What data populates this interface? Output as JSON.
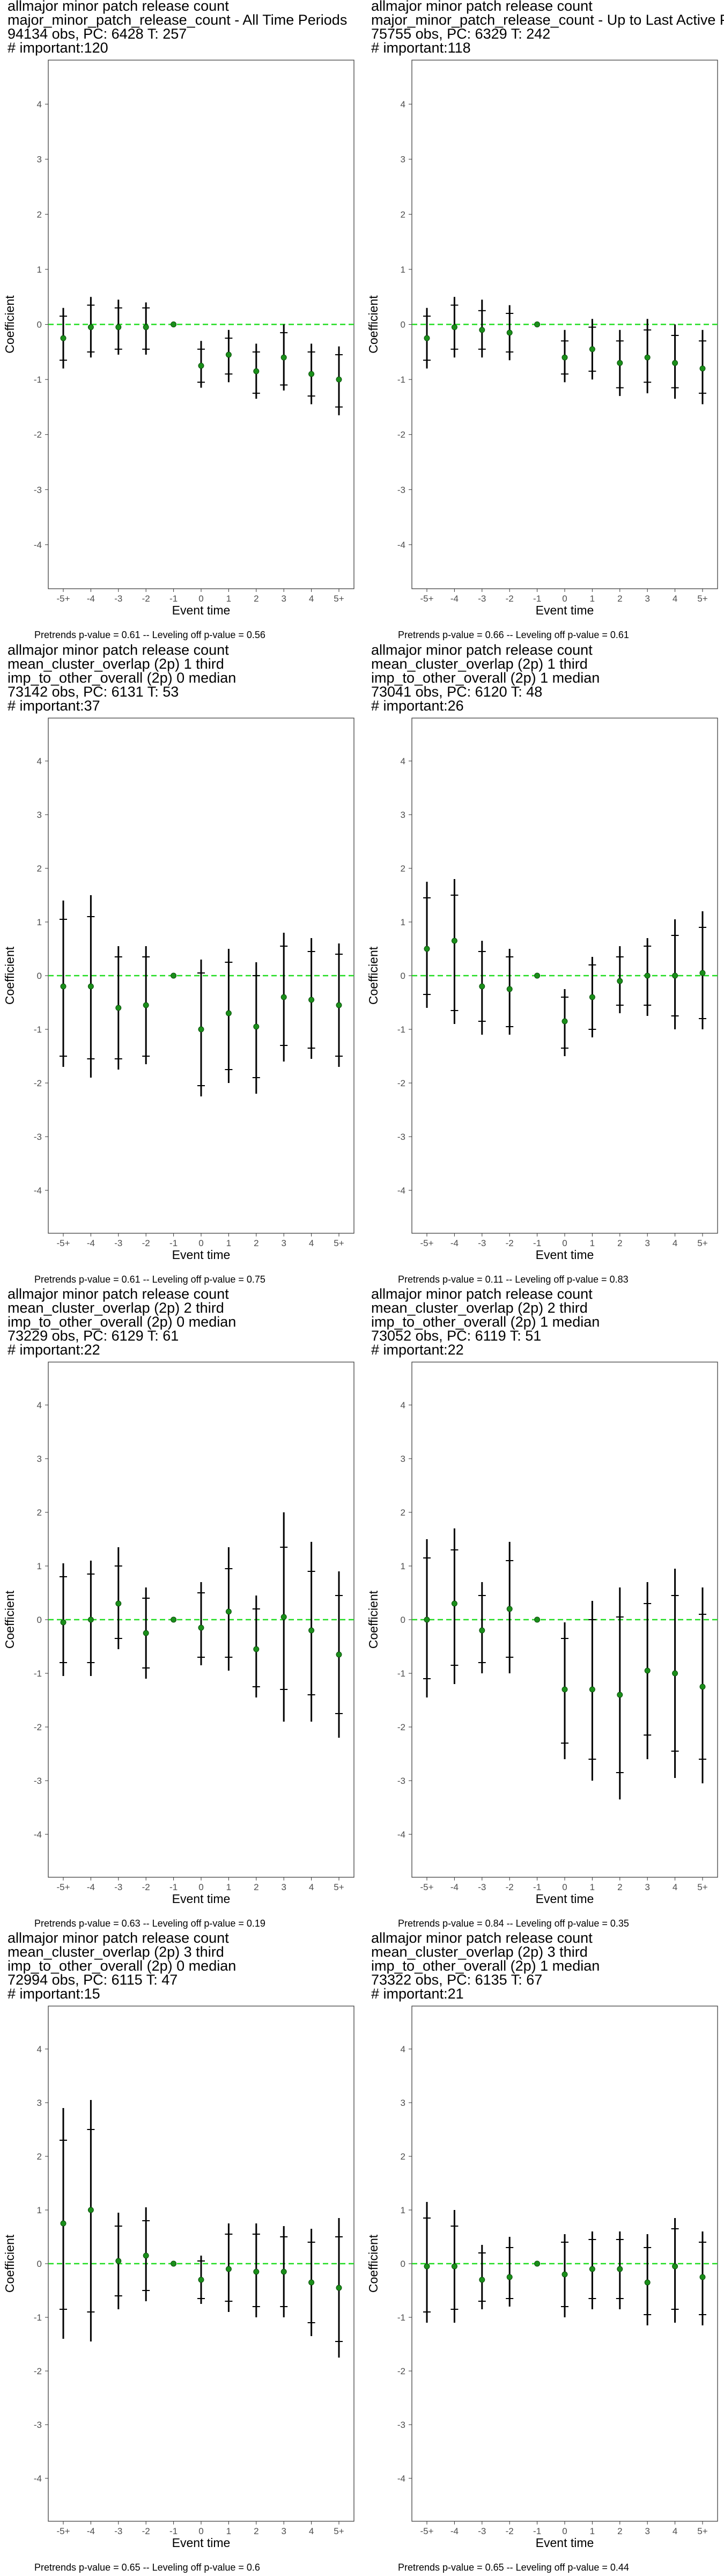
{
  "colors": {
    "zero_line": "#22dd22",
    "point": "#1a8f1a",
    "ci": "#000000",
    "panel_border": "#333333",
    "axis_tick_text": "#4d4d4d"
  },
  "chart_data": [
    {
      "type": "scatter",
      "title_lines": [
        " allmajor minor patch release count",
        "major_minor_patch_release_count - All Time Periods",
        "94134 obs, PC: 6428 T: 257",
        "# important:120"
      ],
      "xlabel": "Event time",
      "ylabel": "Coefficient",
      "categories": [
        "-5+",
        "-4",
        "-3",
        "-2",
        "-1",
        "0",
        "1",
        "2",
        "3",
        "4",
        "5+"
      ],
      "ylim": [
        -4.8,
        4.8
      ],
      "yticks": [
        -4,
        -3,
        -2,
        -1,
        0,
        1,
        2,
        3,
        4
      ],
      "estimates": [
        -0.25,
        -0.05,
        -0.05,
        -0.05,
        0,
        -0.75,
        -0.55,
        -0.85,
        -0.6,
        -0.9,
        -1.0
      ],
      "ci95": [
        [
          -0.8,
          0.3
        ],
        [
          -0.6,
          0.5
        ],
        [
          -0.55,
          0.45
        ],
        [
          -0.55,
          0.4
        ],
        null,
        [
          -1.15,
          -0.3
        ],
        [
          -1.05,
          -0.1
        ],
        [
          -1.35,
          -0.35
        ],
        [
          -1.2,
          0.0
        ],
        [
          -1.45,
          -0.35
        ],
        [
          -1.65,
          -0.4
        ]
      ],
      "ci_inner": [
        [
          -0.65,
          0.15
        ],
        [
          -0.5,
          0.35
        ],
        [
          -0.45,
          0.3
        ],
        [
          -0.45,
          0.3
        ],
        null,
        [
          -1.05,
          -0.45
        ],
        [
          -0.9,
          -0.25
        ],
        [
          -1.25,
          -0.5
        ],
        [
          -1.1,
          -0.15
        ],
        [
          -1.3,
          -0.5
        ],
        [
          -1.5,
          -0.55
        ]
      ],
      "caption": "Pretrends p-value = 0.61 -- Leveling off p-value = 0.56"
    },
    {
      "type": "scatter",
      "title_lines": [
        " allmajor minor patch release count",
        "major_minor_patch_release_count - Up to Last Active Period",
        "75755 obs, PC: 6329 T: 242",
        "# important:118"
      ],
      "xlabel": "Event time",
      "ylabel": "Coefficient",
      "categories": [
        "-5+",
        "-4",
        "-3",
        "-2",
        "-1",
        "0",
        "1",
        "2",
        "3",
        "4",
        "5+"
      ],
      "ylim": [
        -4.8,
        4.8
      ],
      "yticks": [
        -4,
        -3,
        -2,
        -1,
        0,
        1,
        2,
        3,
        4
      ],
      "estimates": [
        -0.25,
        -0.05,
        -0.1,
        -0.15,
        0,
        -0.6,
        -0.45,
        -0.7,
        -0.6,
        -0.7,
        -0.8
      ],
      "ci95": [
        [
          -0.8,
          0.3
        ],
        [
          -0.6,
          0.5
        ],
        [
          -0.6,
          0.45
        ],
        [
          -0.65,
          0.35
        ],
        null,
        [
          -1.05,
          -0.1
        ],
        [
          -1.0,
          0.1
        ],
        [
          -1.3,
          -0.1
        ],
        [
          -1.25,
          0.1
        ],
        [
          -1.35,
          0.0
        ],
        [
          -1.45,
          -0.1
        ]
      ],
      "ci_inner": [
        [
          -0.65,
          0.15
        ],
        [
          -0.45,
          0.35
        ],
        [
          -0.45,
          0.25
        ],
        [
          -0.5,
          0.2
        ],
        null,
        [
          -0.9,
          -0.3
        ],
        [
          -0.85,
          -0.05
        ],
        [
          -1.15,
          -0.3
        ],
        [
          -1.05,
          -0.1
        ],
        [
          -1.15,
          -0.2
        ],
        [
          -1.25,
          -0.3
        ]
      ],
      "caption": "Pretrends p-value = 0.66 -- Leveling off p-value = 0.61"
    },
    {
      "type": "scatter",
      "title_lines": [
        " allmajor minor patch release count",
        "mean_cluster_overlap (2p) 1 third",
        "imp_to_other_overall (2p) 0 median",
        "73142 obs, PC: 6131 T: 53",
        "# important:37"
      ],
      "xlabel": "Event time",
      "ylabel": "Coefficient",
      "categories": [
        "-5+",
        "-4",
        "-3",
        "-2",
        "-1",
        "0",
        "1",
        "2",
        "3",
        "4",
        "5+"
      ],
      "ylim": [
        -4.8,
        4.8
      ],
      "yticks": [
        -4,
        -3,
        -2,
        -1,
        0,
        1,
        2,
        3,
        4
      ],
      "estimates": [
        -0.2,
        -0.2,
        -0.6,
        -0.55,
        0,
        -1.0,
        -0.7,
        -0.95,
        -0.4,
        -0.45,
        -0.55
      ],
      "ci95": [
        [
          -1.7,
          1.4
        ],
        [
          -1.9,
          1.5
        ],
        [
          -1.75,
          0.55
        ],
        [
          -1.65,
          0.55
        ],
        null,
        [
          -2.25,
          0.3
        ],
        [
          -2.0,
          0.5
        ],
        [
          -2.2,
          0.25
        ],
        [
          -1.6,
          0.8
        ],
        [
          -1.55,
          0.7
        ],
        [
          -1.7,
          0.6
        ]
      ],
      "ci_inner": [
        [
          -1.5,
          1.05
        ],
        [
          -1.55,
          1.1
        ],
        [
          -1.55,
          0.35
        ],
        [
          -1.5,
          0.35
        ],
        null,
        [
          -2.05,
          0.05
        ],
        [
          -1.75,
          0.25
        ],
        [
          -1.9,
          0.0
        ],
        [
          -1.3,
          0.55
        ],
        [
          -1.35,
          0.45
        ],
        [
          -1.5,
          0.4
        ]
      ],
      "caption": "Pretrends p-value = 0.61 -- Leveling off p-value = 0.75"
    },
    {
      "type": "scatter",
      "title_lines": [
        " allmajor minor patch release count",
        "mean_cluster_overlap (2p) 1 third",
        "imp_to_other_overall (2p) 1 median",
        "73041 obs, PC: 6120 T: 48",
        "# important:26"
      ],
      "xlabel": "Event time",
      "ylabel": "Coefficient",
      "categories": [
        "-5+",
        "-4",
        "-3",
        "-2",
        "-1",
        "0",
        "1",
        "2",
        "3",
        "4",
        "5+"
      ],
      "ylim": [
        -4.8,
        4.8
      ],
      "yticks": [
        -4,
        -3,
        -2,
        -1,
        0,
        1,
        2,
        3,
        4
      ],
      "estimates": [
        0.5,
        0.65,
        -0.2,
        -0.25,
        0,
        -0.85,
        -0.4,
        -0.1,
        0.0,
        0.0,
        0.05
      ],
      "ci95": [
        [
          -0.6,
          1.75
        ],
        [
          -0.9,
          1.8
        ],
        [
          -1.1,
          0.65
        ],
        [
          -1.1,
          0.5
        ],
        null,
        [
          -1.5,
          -0.25
        ],
        [
          -1.15,
          0.35
        ],
        [
          -0.7,
          0.55
        ],
        [
          -0.75,
          0.7
        ],
        [
          -1.0,
          1.05
        ],
        [
          -1.0,
          1.2
        ]
      ],
      "ci_inner": [
        [
          -0.35,
          1.45
        ],
        [
          -0.65,
          1.5
        ],
        [
          -0.85,
          0.45
        ],
        [
          -0.95,
          0.35
        ],
        null,
        [
          -1.35,
          -0.4
        ],
        [
          -1.0,
          0.2
        ],
        [
          -0.55,
          0.35
        ],
        [
          -0.55,
          0.55
        ],
        [
          -0.75,
          0.75
        ],
        [
          -0.8,
          0.9
        ]
      ],
      "caption": "Pretrends p-value = 0.11 -- Leveling off p-value = 0.83"
    },
    {
      "type": "scatter",
      "title_lines": [
        " allmajor minor patch release count",
        "mean_cluster_overlap (2p) 2 third",
        "imp_to_other_overall (2p) 0 median",
        "73229 obs, PC: 6129 T: 61",
        "# important:22"
      ],
      "xlabel": "Event time",
      "ylabel": "Coefficient",
      "categories": [
        "-5+",
        "-4",
        "-3",
        "-2",
        "-1",
        "0",
        "1",
        "2",
        "3",
        "4",
        "5+"
      ],
      "ylim": [
        -4.8,
        4.8
      ],
      "yticks": [
        -4,
        -3,
        -2,
        -1,
        0,
        1,
        2,
        3,
        4
      ],
      "estimates": [
        -0.05,
        0.0,
        0.3,
        -0.25,
        0,
        -0.15,
        0.15,
        -0.55,
        0.05,
        -0.2,
        -0.65
      ],
      "ci95": [
        [
          -1.05,
          1.05
        ],
        [
          -1.05,
          1.1
        ],
        [
          -0.55,
          1.35
        ],
        [
          -1.1,
          0.6
        ],
        null,
        [
          -0.85,
          0.7
        ],
        [
          -0.95,
          1.35
        ],
        [
          -1.45,
          0.45
        ],
        [
          -1.9,
          2.0
        ],
        [
          -1.9,
          1.45
        ],
        [
          -2.2,
          0.9
        ]
      ],
      "ci_inner": [
        [
          -0.8,
          0.8
        ],
        [
          -0.8,
          0.85
        ],
        [
          -0.35,
          1.0
        ],
        [
          -0.9,
          0.4
        ],
        null,
        [
          -0.7,
          0.5
        ],
        [
          -0.7,
          0.95
        ],
        [
          -1.25,
          0.2
        ],
        [
          -1.3,
          1.35
        ],
        [
          -1.4,
          0.9
        ],
        [
          -1.75,
          0.45
        ]
      ],
      "caption": "Pretrends p-value = 0.63 -- Leveling off p-value = 0.19"
    },
    {
      "type": "scatter",
      "title_lines": [
        " allmajor minor patch release count",
        "mean_cluster_overlap (2p) 2 third",
        "imp_to_other_overall (2p) 1 median",
        "73052 obs, PC: 6119 T: 51",
        "# important:22"
      ],
      "xlabel": "Event time",
      "ylabel": "Coefficient",
      "categories": [
        "-5+",
        "-4",
        "-3",
        "-2",
        "-1",
        "0",
        "1",
        "2",
        "3",
        "4",
        "5+"
      ],
      "ylim": [
        -4.8,
        4.8
      ],
      "yticks": [
        -4,
        -3,
        -2,
        -1,
        0,
        1,
        2,
        3,
        4
      ],
      "estimates": [
        0.0,
        0.3,
        -0.2,
        0.2,
        0,
        -1.3,
        -1.3,
        -1.4,
        -0.95,
        -1.0,
        -1.25
      ],
      "ci95": [
        [
          -1.45,
          1.5
        ],
        [
          -1.2,
          1.7
        ],
        [
          -1.0,
          0.7
        ],
        [
          -1.0,
          1.45
        ],
        null,
        [
          -2.6,
          -0.05
        ],
        [
          -3.0,
          0.35
        ],
        [
          -3.35,
          0.6
        ],
        [
          -2.6,
          0.7
        ],
        [
          -2.95,
          0.95
        ],
        [
          -3.05,
          0.6
        ]
      ],
      "ci_inner": [
        [
          -1.1,
          1.15
        ],
        [
          -0.85,
          1.3
        ],
        [
          -0.8,
          0.45
        ],
        [
          -0.7,
          1.1
        ],
        null,
        [
          -2.3,
          -0.35
        ],
        [
          -2.6,
          0.0
        ],
        [
          -2.85,
          0.05
        ],
        [
          -2.15,
          0.3
        ],
        [
          -2.45,
          0.45
        ],
        [
          -2.6,
          0.1
        ]
      ],
      "caption": "Pretrends p-value = 0.84 -- Leveling off p-value = 0.35"
    },
    {
      "type": "scatter",
      "title_lines": [
        " allmajor minor patch release count",
        "mean_cluster_overlap (2p) 3 third",
        "imp_to_other_overall (2p) 0 median",
        "72994 obs, PC: 6115 T: 47",
        "# important:15"
      ],
      "xlabel": "Event time",
      "ylabel": "Coefficient",
      "categories": [
        "-5+",
        "-4",
        "-3",
        "-2",
        "-1",
        "0",
        "1",
        "2",
        "3",
        "4",
        "5+"
      ],
      "ylim": [
        -4.8,
        4.8
      ],
      "yticks": [
        -4,
        -3,
        -2,
        -1,
        0,
        1,
        2,
        3,
        4
      ],
      "estimates": [
        0.75,
        1.0,
        0.05,
        0.15,
        0,
        -0.3,
        -0.1,
        -0.15,
        -0.15,
        -0.35,
        -0.45
      ],
      "ci95": [
        [
          -1.4,
          2.9
        ],
        [
          -1.45,
          3.05
        ],
        [
          -0.85,
          0.95
        ],
        [
          -0.7,
          1.05
        ],
        null,
        [
          -0.75,
          0.15
        ],
        [
          -0.9,
          0.75
        ],
        [
          -1.0,
          0.75
        ],
        [
          -1.0,
          0.7
        ],
        [
          -1.35,
          0.65
        ],
        [
          -1.75,
          0.85
        ]
      ],
      "ci_inner": [
        [
          -0.85,
          2.3
        ],
        [
          -0.9,
          2.5
        ],
        [
          -0.6,
          0.7
        ],
        [
          -0.5,
          0.8
        ],
        null,
        [
          -0.65,
          0.05
        ],
        [
          -0.7,
          0.55
        ],
        [
          -0.8,
          0.55
        ],
        [
          -0.8,
          0.5
        ],
        [
          -1.1,
          0.4
        ],
        [
          -1.45,
          0.5
        ]
      ],
      "caption": "Pretrends p-value = 0.65 -- Leveling off p-value = 0.6"
    },
    {
      "type": "scatter",
      "title_lines": [
        " allmajor minor patch release count",
        "mean_cluster_overlap (2p) 3 third",
        "imp_to_other_overall (2p) 1 median",
        "73322 obs, PC: 6135 T: 67",
        "# important:21"
      ],
      "xlabel": "Event time",
      "ylabel": "Coefficient",
      "categories": [
        "-5+",
        "-4",
        "-3",
        "-2",
        "-1",
        "0",
        "1",
        "2",
        "3",
        "4",
        "5+"
      ],
      "ylim": [
        -4.8,
        4.8
      ],
      "yticks": [
        -4,
        -3,
        -2,
        -1,
        0,
        1,
        2,
        3,
        4
      ],
      "estimates": [
        -0.05,
        -0.05,
        -0.3,
        -0.25,
        0,
        -0.2,
        -0.1,
        -0.1,
        -0.35,
        -0.05,
        -0.25
      ],
      "ci95": [
        [
          -1.1,
          1.15
        ],
        [
          -1.1,
          1.0
        ],
        [
          -0.85,
          0.35
        ],
        [
          -0.8,
          0.5
        ],
        null,
        [
          -1.0,
          0.55
        ],
        [
          -0.85,
          0.6
        ],
        [
          -0.85,
          0.6
        ],
        [
          -1.15,
          0.55
        ],
        [
          -1.1,
          0.85
        ],
        [
          -1.15,
          0.6
        ]
      ],
      "ci_inner": [
        [
          -0.9,
          0.85
        ],
        [
          -0.85,
          0.7
        ],
        [
          -0.7,
          0.2
        ],
        [
          -0.65,
          0.3
        ],
        null,
        [
          -0.8,
          0.4
        ],
        [
          -0.65,
          0.45
        ],
        [
          -0.65,
          0.45
        ],
        [
          -0.95,
          0.3
        ],
        [
          -0.85,
          0.65
        ],
        [
          -0.95,
          0.4
        ]
      ],
      "caption": "Pretrends p-value = 0.65 -- Leveling off p-value = 0.44"
    }
  ]
}
